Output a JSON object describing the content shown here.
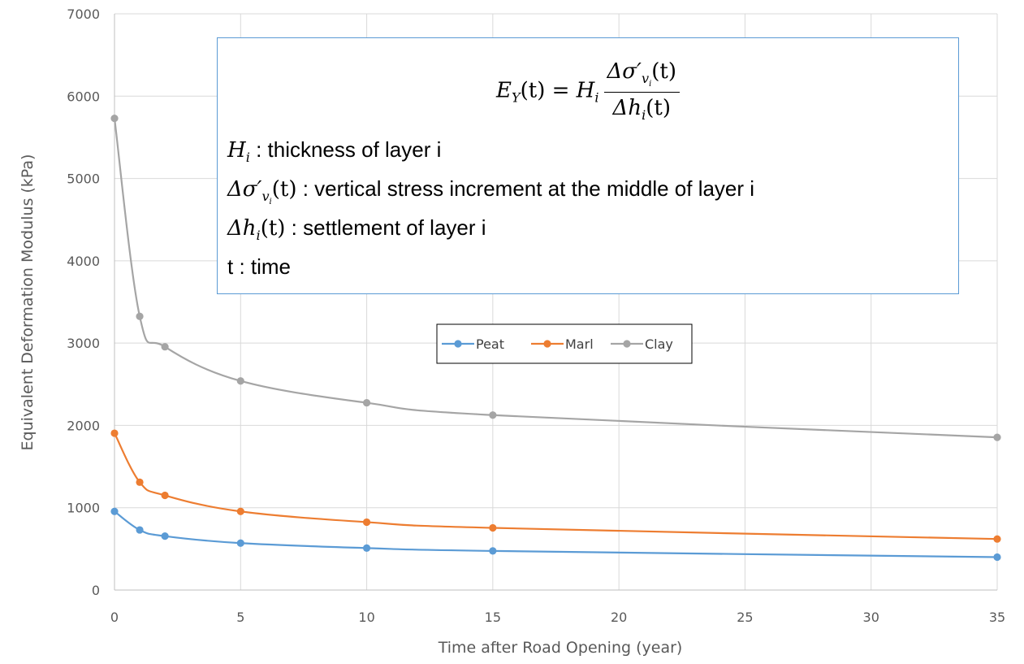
{
  "chart_data": {
    "type": "line",
    "title": "",
    "xlabel": "Time after Road Opening (year)",
    "ylabel": "Equivalent Deformation Modulus (kPa)",
    "xlim": [
      0,
      35
    ],
    "ylim": [
      0,
      7000
    ],
    "xticks": [
      0,
      5,
      10,
      15,
      20,
      25,
      30,
      35
    ],
    "yticks": [
      0,
      1000,
      2000,
      3000,
      4000,
      5000,
      6000,
      7000
    ],
    "x": [
      0,
      1,
      2,
      5,
      10,
      15,
      35
    ],
    "grid": true,
    "legend_position": "center",
    "series": [
      {
        "name": "Peat",
        "color": "#5b9bd5",
        "values": [
          955,
          730,
          655,
          570,
          510,
          475,
          400
        ]
      },
      {
        "name": "Marl",
        "color": "#ed7d31",
        "values": [
          1905,
          1310,
          1150,
          955,
          825,
          755,
          620
        ]
      },
      {
        "name": "Clay",
        "color": "#a5a5a5",
        "values": [
          5730,
          3325,
          2955,
          2540,
          2275,
          2125,
          1855
        ]
      }
    ]
  },
  "annotation": {
    "formula": {
      "lhs": "E",
      "lhs_sub": "Y",
      "lhs_arg": "(t) = ",
      "coef": "H",
      "coef_sub": "i",
      "num_delta": "Δσ′",
      "num_sub": "v",
      "num_subsub": "i",
      "num_arg": "(t)",
      "den_delta": "Δh",
      "den_sub": "i",
      "den_arg": "(t)"
    },
    "def1": {
      "sym": "H",
      "sub": "i",
      "text": " : thickness of layer i"
    },
    "def2": {
      "sym": "Δσ′",
      "sub": "v",
      "subsub": "i",
      "arg": "(t)",
      "text": " : vertical stress increment at the middle of layer i"
    },
    "def3": {
      "sym": "Δh",
      "sub": "i",
      "arg": "(t)",
      "text": " : settlement of layer i"
    },
    "def4": {
      "text": "t : time"
    }
  }
}
